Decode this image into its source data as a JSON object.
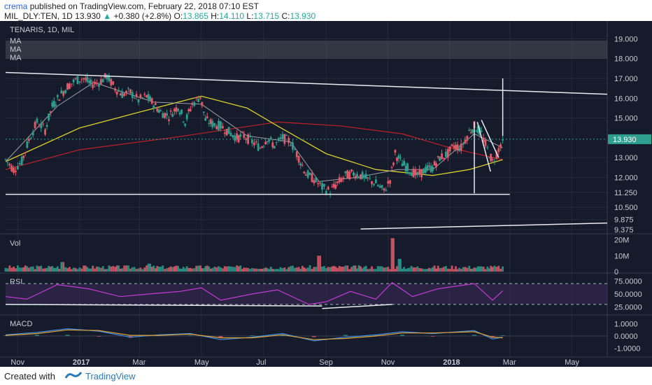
{
  "header": {
    "author": "crema",
    "published_text": "published on TradingView.com, February 22, 2018 07:10 EST",
    "symbol": "MIL_DLY:TEN, 1D",
    "last": "13.930",
    "change": "+0.380 (+2.8%)",
    "o_label": "O:",
    "o": "13.865",
    "h_label": "H:",
    "h": "14.110",
    "l_label": "L:",
    "l": "13.715",
    "c_label": "C:",
    "c": "13.930"
  },
  "footer": {
    "created_with": "Created with",
    "brand": "TradingView"
  },
  "colors": {
    "bg": "#151b2b",
    "up": "#2e9e8f",
    "down": "#e25a6a",
    "ma_yellow": "#d9cf2e",
    "ma_red": "#b3202a",
    "ma_grey": "#9aa0a6",
    "rsi": "#c33bd4",
    "macd": "#3d8ee6",
    "signal": "#e0a23a"
  },
  "chart_data": [
    {
      "type": "candlestick",
      "title": "TENARIS, 1D, MIL",
      "legend": [
        "MA",
        "MA",
        "MA"
      ],
      "y_ticks": [
        "19.000",
        "18.000",
        "17.000",
        "16.000",
        "15.000",
        "13.930",
        "13.000",
        "12.000",
        "11.250",
        "10.500",
        "9.875",
        "9.375"
      ],
      "ylim": [
        9.3,
        19.4
      ],
      "last_price": 13.93,
      "x_ticks": [
        "Nov",
        "2017",
        "Mar",
        "May",
        "Jul",
        "Sep",
        "Nov",
        "2018",
        "Mar",
        "May"
      ],
      "x_tick_dates": [
        "2016-11-01",
        "2017-01-01",
        "2017-03-01",
        "2017-05-01",
        "2017-07-01",
        "2017-09-01",
        "2017-11-01",
        "2018-01-01",
        "2018-03-01",
        "2018-05-01"
      ],
      "x_range": [
        "2016-10-20",
        "2018-06-05"
      ],
      "close_path": [
        [
          "2016-10-20",
          12.9
        ],
        [
          "2016-10-28",
          12.4
        ],
        [
          "2016-11-05",
          12.8
        ],
        [
          "2016-11-12",
          13.9
        ],
        [
          "2016-11-20",
          14.8
        ],
        [
          "2016-11-28",
          14.4
        ],
        [
          "2016-12-05",
          15.6
        ],
        [
          "2016-12-12",
          16.1
        ],
        [
          "2016-12-20",
          16.6
        ],
        [
          "2016-12-28",
          16.9
        ],
        [
          "2017-01-05",
          17.0
        ],
        [
          "2017-01-12",
          16.7
        ],
        [
          "2017-01-20",
          16.8
        ],
        [
          "2017-01-28",
          17.1
        ],
        [
          "2017-02-05",
          16.5
        ],
        [
          "2017-02-12",
          16.2
        ],
        [
          "2017-02-20",
          16.3
        ],
        [
          "2017-02-28",
          15.9
        ],
        [
          "2017-03-08",
          16.1
        ],
        [
          "2017-03-15",
          15.7
        ],
        [
          "2017-03-22",
          15.3
        ],
        [
          "2017-03-30",
          15.1
        ],
        [
          "2017-04-08",
          15.6
        ],
        [
          "2017-04-15",
          14.8
        ],
        [
          "2017-04-22",
          15.7
        ],
        [
          "2017-04-30",
          16.1
        ],
        [
          "2017-05-05",
          14.9
        ],
        [
          "2017-05-12",
          14.7
        ],
        [
          "2017-05-20",
          14.6
        ],
        [
          "2017-05-28",
          14.3
        ],
        [
          "2017-06-05",
          14.0
        ],
        [
          "2017-06-12",
          14.1
        ],
        [
          "2017-06-20",
          13.8
        ],
        [
          "2017-06-28",
          13.5
        ],
        [
          "2017-07-05",
          14.0
        ],
        [
          "2017-07-12",
          13.6
        ],
        [
          "2017-07-20",
          14.0
        ],
        [
          "2017-07-28",
          13.8
        ],
        [
          "2017-08-05",
          13.0
        ],
        [
          "2017-08-12",
          12.2
        ],
        [
          "2017-08-20",
          11.9
        ],
        [
          "2017-08-28",
          11.5
        ],
        [
          "2017-09-05",
          11.3
        ],
        [
          "2017-09-12",
          11.7
        ],
        [
          "2017-09-20",
          12.1
        ],
        [
          "2017-09-28",
          12.2
        ],
        [
          "2017-10-05",
          12.1
        ],
        [
          "2017-10-12",
          11.9
        ],
        [
          "2017-10-20",
          11.7
        ],
        [
          "2017-10-28",
          11.3
        ],
        [
          "2017-11-03",
          11.9
        ],
        [
          "2017-11-08",
          13.2
        ],
        [
          "2017-11-15",
          12.7
        ],
        [
          "2017-11-22",
          12.4
        ],
        [
          "2017-11-30",
          12.1
        ],
        [
          "2017-12-08",
          12.4
        ],
        [
          "2017-12-15",
          12.5
        ],
        [
          "2017-12-22",
          13.0
        ],
        [
          "2017-12-30",
          13.2
        ],
        [
          "2018-01-05",
          13.6
        ],
        [
          "2018-01-12",
          13.5
        ],
        [
          "2018-01-20",
          14.3
        ],
        [
          "2018-01-25",
          14.6
        ],
        [
          "2018-02-01",
          14.2
        ],
        [
          "2018-02-07",
          13.4
        ],
        [
          "2018-02-12",
          12.8
        ],
        [
          "2018-02-16",
          13.2
        ],
        [
          "2018-02-22",
          13.93
        ]
      ],
      "ma_yellow": [
        [
          "2016-10-20",
          12.8
        ],
        [
          "2017-01-01",
          14.5
        ],
        [
          "2017-03-01",
          15.3
        ],
        [
          "2017-05-01",
          16.1
        ],
        [
          "2017-06-15",
          15.5
        ],
        [
          "2017-07-15",
          14.6
        ],
        [
          "2017-09-01",
          13.2
        ],
        [
          "2017-10-20",
          12.4
        ],
        [
          "2017-12-15",
          12.1
        ],
        [
          "2018-01-20",
          12.4
        ],
        [
          "2018-02-22",
          12.9
        ]
      ],
      "ma_red": [
        [
          "2016-10-20",
          12.4
        ],
        [
          "2017-01-01",
          13.4
        ],
        [
          "2017-04-01",
          14.0
        ],
        [
          "2017-07-15",
          14.8
        ],
        [
          "2017-09-15",
          14.6
        ],
        [
          "2017-11-15",
          14.2
        ],
        [
          "2018-01-01",
          13.5
        ],
        [
          "2018-02-22",
          12.9
        ]
      ],
      "ma_grey": [
        [
          "2016-10-20",
          12.8
        ],
        [
          "2016-12-10",
          15.6
        ],
        [
          "2017-01-15",
          16.8
        ],
        [
          "2017-03-15",
          15.8
        ],
        [
          "2017-05-01",
          15.7
        ],
        [
          "2017-06-15",
          14.1
        ],
        [
          "2017-07-28",
          13.8
        ],
        [
          "2017-08-25",
          11.8
        ],
        [
          "2017-10-01",
          12.0
        ],
        [
          "2017-11-10",
          12.4
        ],
        [
          "2017-12-15",
          12.4
        ],
        [
          "2018-01-25",
          14.2
        ],
        [
          "2018-02-22",
          13.5
        ]
      ],
      "drawings": [
        {
          "kind": "line",
          "from": [
            "2016-10-20",
            17.3
          ],
          "to": [
            "2018-06-05",
            16.2
          ]
        },
        {
          "kind": "line",
          "from": [
            "2016-10-20",
            11.15
          ],
          "to": [
            "2018-03-01",
            11.15
          ]
        },
        {
          "kind": "line",
          "from": [
            "2017-10-05",
            9.4
          ],
          "to": [
            "2018-06-05",
            9.7
          ]
        },
        {
          "kind": "line",
          "from": [
            "2018-01-25",
            11.2
          ],
          "to": [
            "2018-01-25",
            14.8
          ]
        },
        {
          "kind": "line",
          "from": [
            "2018-01-28",
            14.8
          ],
          "to": [
            "2018-02-10",
            12.3
          ]
        },
        {
          "kind": "line",
          "from": [
            "2018-02-01",
            14.9
          ],
          "to": [
            "2018-02-18",
            13.0
          ]
        },
        {
          "kind": "line",
          "from": [
            "2018-02-22",
            14.1
          ],
          "to": [
            "2018-02-22",
            17.0
          ]
        }
      ]
    },
    {
      "type": "bar",
      "title": "Vol",
      "y_ticks": [
        "20M",
        "10M",
        "0"
      ],
      "ylim": [
        0,
        22000000
      ],
      "spikes": [
        [
          "2017-08-25",
          10000000
        ],
        [
          "2017-11-05",
          21000000
        ],
        [
          "2017-11-12",
          8000000
        ],
        [
          "2016-12-15",
          6000000
        ],
        [
          "2017-03-10",
          5000000
        ]
      ]
    },
    {
      "type": "line",
      "title": "RSI",
      "y_ticks": [
        "75.0000",
        "50.0000",
        "25.0000"
      ],
      "ylim": [
        15,
        85
      ],
      "levels": [
        70,
        30
      ],
      "values": [
        [
          "2016-10-20",
          45
        ],
        [
          "2016-11-10",
          40
        ],
        [
          "2016-12-10",
          68
        ],
        [
          "2017-01-10",
          60
        ],
        [
          "2017-02-10",
          45
        ],
        [
          "2017-03-10",
          50
        ],
        [
          "2017-04-10",
          55
        ],
        [
          "2017-05-01",
          62
        ],
        [
          "2017-05-20",
          38
        ],
        [
          "2017-06-20",
          50
        ],
        [
          "2017-07-15",
          58
        ],
        [
          "2017-08-15",
          30
        ],
        [
          "2017-09-01",
          35
        ],
        [
          "2017-09-25",
          55
        ],
        [
          "2017-10-20",
          40
        ],
        [
          "2017-11-05",
          72
        ],
        [
          "2017-11-25",
          45
        ],
        [
          "2017-12-20",
          60
        ],
        [
          "2018-01-25",
          70
        ],
        [
          "2018-02-12",
          38
        ],
        [
          "2018-02-22",
          56
        ]
      ],
      "drawings": [
        {
          "kind": "line",
          "from": [
            "2016-10-20",
            30
          ],
          "to": [
            "2017-08-28",
            27
          ]
        },
        {
          "kind": "line",
          "from": [
            "2017-08-28",
            22
          ],
          "to": [
            "2017-11-05",
            30
          ]
        }
      ]
    },
    {
      "type": "line",
      "title": "MACD",
      "y_ticks": [
        "1.0000",
        "0.0000",
        "-1.0000"
      ],
      "ylim": [
        -1.5,
        1.5
      ],
      "macd": [
        [
          "2016-10-20",
          0.1
        ],
        [
          "2016-11-20",
          0.3
        ],
        [
          "2016-12-20",
          0.6
        ],
        [
          "2017-01-20",
          0.4
        ],
        [
          "2017-02-20",
          -0.1
        ],
        [
          "2017-03-20",
          0.1
        ],
        [
          "2017-04-20",
          0.2
        ],
        [
          "2017-05-20",
          -0.3
        ],
        [
          "2017-06-20",
          -0.1
        ],
        [
          "2017-07-20",
          0.2
        ],
        [
          "2017-08-20",
          -0.4
        ],
        [
          "2017-09-20",
          -0.1
        ],
        [
          "2017-10-20",
          0.1
        ],
        [
          "2017-11-15",
          0.35
        ],
        [
          "2017-12-15",
          0.2
        ],
        [
          "2018-01-25",
          0.45
        ],
        [
          "2018-02-12",
          -0.25
        ],
        [
          "2018-02-22",
          -0.1
        ]
      ],
      "signal": [
        [
          "2016-10-20",
          0.05
        ],
        [
          "2016-11-20",
          0.2
        ],
        [
          "2016-12-20",
          0.5
        ],
        [
          "2017-01-20",
          0.45
        ],
        [
          "2017-02-20",
          0.05
        ],
        [
          "2017-03-20",
          0.05
        ],
        [
          "2017-04-20",
          0.15
        ],
        [
          "2017-05-20",
          -0.15
        ],
        [
          "2017-06-20",
          -0.15
        ],
        [
          "2017-07-20",
          0.1
        ],
        [
          "2017-08-20",
          -0.3
        ],
        [
          "2017-09-20",
          -0.2
        ],
        [
          "2017-10-20",
          0.0
        ],
        [
          "2017-11-15",
          0.25
        ],
        [
          "2017-12-15",
          0.25
        ],
        [
          "2018-01-25",
          0.35
        ],
        [
          "2018-02-12",
          -0.1
        ],
        [
          "2018-02-22",
          -0.15
        ]
      ]
    }
  ]
}
